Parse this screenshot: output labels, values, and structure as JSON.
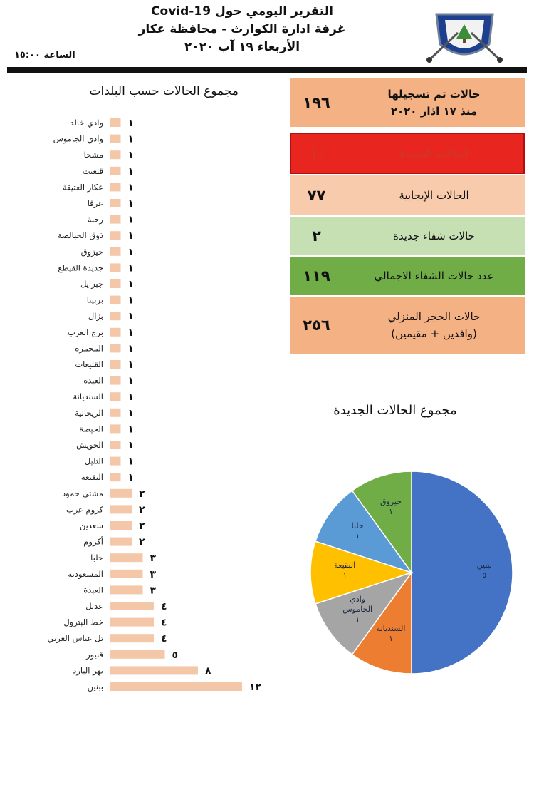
{
  "header": {
    "line1": "التقرير اليومي حول Covid-19",
    "line2": "غرفة ادارة الكوارث - محافظة عكار",
    "line3": "الأربعاء ١٩ آب ٢٠٢٠",
    "time": "الساعة ١٥:٠٠"
  },
  "summary": [
    {
      "label": "حالات تم تسجيلها",
      "label2": "منذ ١٧ اذار ٢٠٢٠",
      "value": "١٩٦",
      "color": "#f4b183",
      "bold": true
    },
    {
      "label": "الحالات الجديدة",
      "label2": "",
      "value": "١٠",
      "color": "#e8261f",
      "bold": false
    },
    {
      "label": "الحالات الإيجابية",
      "label2": "",
      "value": "٧٧",
      "color": "#f8cbad",
      "bold": false
    },
    {
      "label": "حالات شفاء جديدة",
      "label2": "",
      "value": "٢",
      "color": "#c6e0b4",
      "bold": false
    },
    {
      "label": "عدد حالات الشفاء الاجمالي",
      "label2": "",
      "value": "١١٩",
      "color": "#70ad47",
      "bold": false
    },
    {
      "label": "حالات الحجر المنزلي",
      "label2": "(وافدين + مقيمين)",
      "value": "٢٥٦",
      "color": "#f4b183",
      "bold": false
    }
  ],
  "chart_data": [
    {
      "type": "bar",
      "title": "مجموع الحالات حسب البلدات",
      "orientation": "horizontal",
      "bar_color": "#f4c7a8",
      "categories": [
        "وادي خالد",
        "وادي الجاموس",
        "مشحا",
        "قبعيت",
        "عكار العتيقة",
        "عرقا",
        "رحبة",
        "ذوق الحبالصة",
        "حيزوق",
        "جديدة القيطع",
        "جبرايل",
        "بزبينا",
        "بزال",
        "برج العرب",
        "المحمرة",
        "القليعات",
        "العبدة",
        "السنديانة",
        "الريحانية",
        "الحيصة",
        "الحويش",
        "التليل",
        "البقيعة",
        "مشتى حمود",
        "كروم عرب",
        "سعدين",
        "أكروم",
        "حلبا",
        "المسعودية",
        "العبدة",
        "عدبل",
        "خط البترول",
        "تل عباس الغربي",
        "قنيور",
        "نهر البارد",
        "ببنين"
      ],
      "values": [
        1,
        1,
        1,
        1,
        1,
        1,
        1,
        1,
        1,
        1,
        1,
        1,
        1,
        1,
        1,
        1,
        1,
        1,
        1,
        1,
        1,
        1,
        1,
        2,
        2,
        2,
        2,
        3,
        3,
        3,
        4,
        4,
        4,
        5,
        8,
        12
      ],
      "value_labels": [
        "١",
        "١",
        "١",
        "١",
        "١",
        "١",
        "١",
        "١",
        "١",
        "١",
        "١",
        "١",
        "١",
        "١",
        "١",
        "١",
        "١",
        "١",
        "١",
        "١",
        "١",
        "١",
        "١",
        "٢",
        "٢",
        "٢",
        "٢",
        "٣",
        "٣",
        "٣",
        "٤",
        "٤",
        "٤",
        "٥",
        "٨",
        "١٢"
      ]
    },
    {
      "type": "pie",
      "title": "مجموع الحالات الجديدة",
      "slices": [
        {
          "label": "ببنين",
          "value": 5,
          "value_label": "٥",
          "color": "#4472c4"
        },
        {
          "label": "السنديانة",
          "value": 1,
          "value_label": "١",
          "color": "#ed7d31"
        },
        {
          "label": "وادي الجاموس",
          "value": 1,
          "value_label": "١",
          "color": "#a5a5a5"
        },
        {
          "label": "البقيعة",
          "value": 1,
          "value_label": "١",
          "color": "#ffc000"
        },
        {
          "label": "حلبا",
          "value": 1,
          "value_label": "١",
          "color": "#5b9bd5"
        },
        {
          "label": "حيزوق",
          "value": 1,
          "value_label": "١",
          "color": "#70ad47"
        }
      ]
    }
  ]
}
